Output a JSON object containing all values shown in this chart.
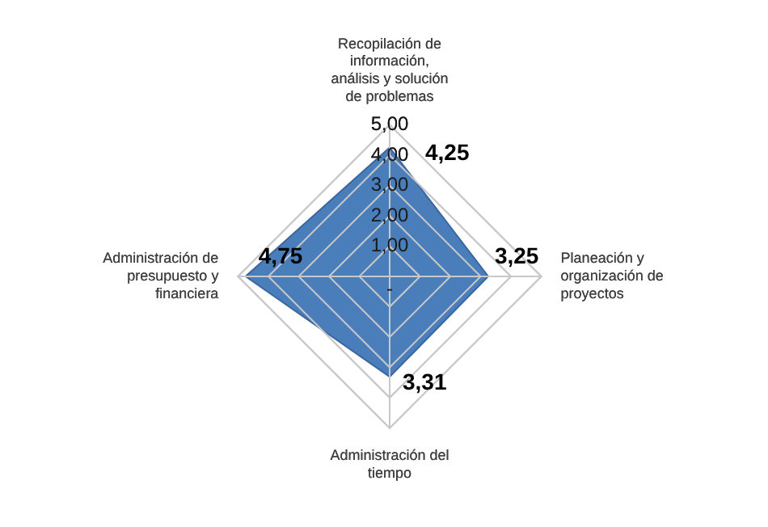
{
  "chart_data": {
    "type": "radar",
    "categories": [
      "Recopilación de información, análisis y solución de problemas",
      "Planeación y organización de proyectos",
      "Administración del tiempo",
      "Administración de presupuesto y financiera"
    ],
    "series": [
      {
        "color": "#4a7ebb",
        "values": [
          4.25,
          3.25,
          3.31,
          4.75
        ],
        "value_labels": [
          "4,25",
          "3,25",
          "3,31",
          "4,75"
        ]
      }
    ],
    "ylim": [
      0,
      5
    ],
    "yticks": [
      {
        "value": 0,
        "label": "-"
      },
      {
        "value": 1,
        "label": "1,00"
      },
      {
        "value": 2,
        "label": "2,00"
      },
      {
        "value": 3,
        "label": "3,00"
      },
      {
        "value": 4,
        "label": "4,00"
      },
      {
        "value": 5,
        "label": "5,00"
      }
    ],
    "grid": true
  }
}
